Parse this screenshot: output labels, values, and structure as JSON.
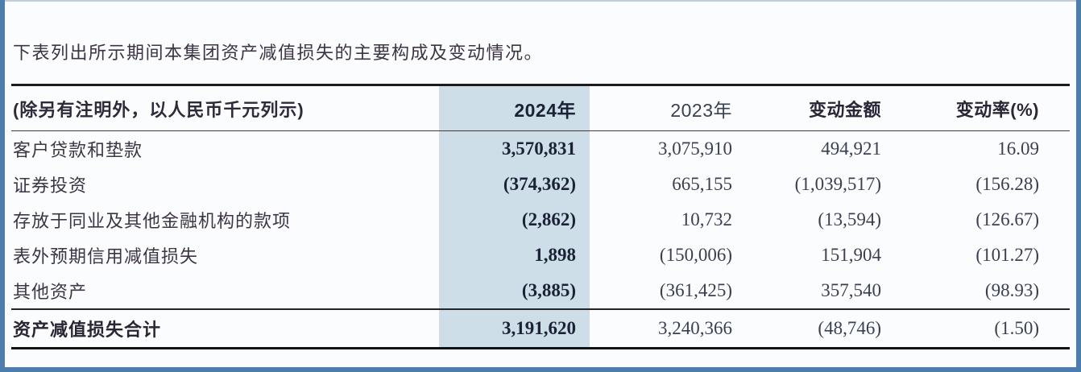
{
  "intro": "下表列出所示期间本集团资产减值损失的主要构成及变动情况。",
  "colors": {
    "highlight_column": "#cddee9",
    "page_edge_blue": "#4d7dac",
    "text_dark": "#3b3544",
    "bold_number": "#1b2236"
  },
  "table": {
    "header": {
      "label": "(除另有注明外，以人民币千元列示)",
      "col_2024": "2024年",
      "col_2023": "2023年",
      "col_change": "变动金额",
      "col_rate": "变动率(%)"
    },
    "rows": [
      {
        "label": "客户贷款和垫款",
        "v2024": "3,570,831",
        "v2023": "3,075,910",
        "change": "494,921",
        "rate": "16.09"
      },
      {
        "label": "证券投资",
        "v2024": "(374,362)",
        "v2023": "665,155",
        "change": "(1,039,517)",
        "rate": "(156.28)"
      },
      {
        "label": "存放于同业及其他金融机构的款项",
        "v2024": "(2,862)",
        "v2023": "10,732",
        "change": "(13,594)",
        "rate": "(126.67)"
      },
      {
        "label": "表外预期信用减值损失",
        "v2024": "1,898",
        "v2023": "(150,006)",
        "change": "151,904",
        "rate": "(101.27)"
      },
      {
        "label": "其他资产",
        "v2024": "(3,885)",
        "v2023": "(361,425)",
        "change": "357,540",
        "rate": "(98.93)"
      }
    ],
    "total": {
      "label": "资产减值损失合计",
      "v2024": "3,191,620",
      "v2023": "3,240,366",
      "change": "(48,746)",
      "rate": "(1.50)"
    }
  }
}
